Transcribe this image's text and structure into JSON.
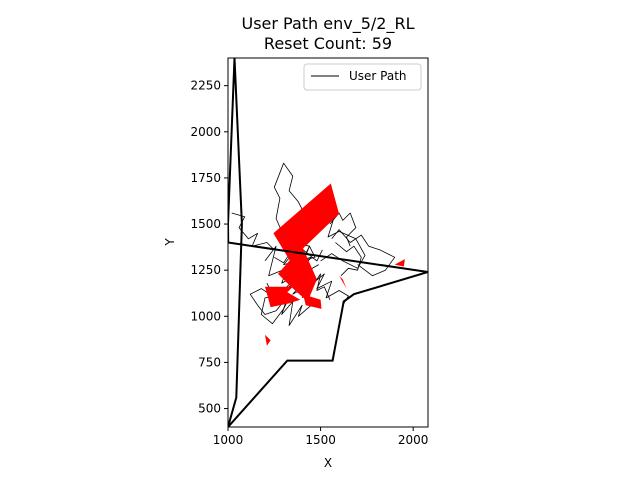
{
  "chart_data": {
    "type": "line",
    "title_line1": "User Path env_5/2_RL",
    "title_line2": "Reset Count: 59",
    "xlabel": "X",
    "ylabel": "Y",
    "xlim": [
      1000,
      2080
    ],
    "ylim": [
      400,
      2400
    ],
    "xticks": [
      1000,
      1500,
      2000
    ],
    "yticks": [
      500,
      750,
      1000,
      1250,
      1500,
      1750,
      2000,
      2250
    ],
    "grid": false,
    "legend": {
      "position": "top-right",
      "entries": [
        "User Path"
      ]
    },
    "colors": {
      "path": "#000000",
      "boundary": "#000000",
      "reset_marker": "#ff0000"
    },
    "boundary": {
      "x": [
        1000,
        1045,
        1075,
        1035,
        1000,
        1001,
        2080,
        1680,
        1625,
        1565,
        1320,
        1000
      ],
      "y": [
        400,
        560,
        1500,
        2400,
        1500,
        1400,
        1240,
        1120,
        1080,
        760,
        760,
        400
      ]
    },
    "reset_regions": [
      {
        "x": [
          1245,
          1555,
          1600,
          1335
        ],
        "y": [
          1450,
          1720,
          1555,
          1300
        ]
      },
      {
        "x": [
          1270,
          1400,
          1480,
          1430,
          1340
        ],
        "y": [
          1230,
          1380,
          1200,
          1080,
          1160
        ]
      },
      {
        "x": [
          1200,
          1350,
          1320,
          1390,
          1330,
          1230
        ],
        "y": [
          1160,
          1160,
          1130,
          1090,
          1070,
          1050
        ]
      },
      {
        "x": [
          1405,
          1500,
          1505,
          1420
        ],
        "y": [
          1120,
          1090,
          1040,
          1060
        ]
      },
      {
        "x": [
          1600,
          1640,
          1620
        ],
        "y": [
          1220,
          1150,
          1200
        ]
      },
      {
        "x": [
          1900,
          1955,
          1950
        ],
        "y": [
          1280,
          1310,
          1270
        ]
      },
      {
        "x": [
          1200,
          1230,
          1210
        ],
        "y": [
          900,
          870,
          840
        ]
      }
    ],
    "series": [
      {
        "x": [
          1340,
          1290,
          1260,
          1280,
          1250,
          1300,
          1350,
          1330,
          1380,
          1400,
          1420
        ],
        "y": [
          1400,
          1460,
          1530,
          1640,
          1700,
          1830,
          1760,
          1680,
          1620,
          1580,
          1540
        ]
      },
      {
        "x": [
          1360,
          1390,
          1330,
          1420,
          1350,
          1400,
          1300,
          1450,
          1380,
          1440,
          1350,
          1490
        ],
        "y": [
          1440,
          1300,
          1360,
          1250,
          1330,
          1400,
          1280,
          1320,
          1240,
          1380,
          1200,
          1280
        ]
      },
      {
        "x": [
          1200,
          1260,
          1220,
          1320,
          1290,
          1380,
          1310,
          1420,
          1350,
          1460,
          1400
        ],
        "y": [
          1300,
          1380,
          1220,
          1260,
          1180,
          1230,
          1150,
          1200,
          1120,
          1180,
          1100
        ]
      },
      {
        "x": [
          1320,
          1290,
          1350,
          1330,
          1400,
          1380,
          1450
        ],
        "y": [
          1100,
          1010,
          1080,
          950,
          1060,
          1000,
          1060
        ]
      },
      {
        "x": [
          1330,
          1300,
          1240,
          1180,
          1200,
          1290,
          1340,
          1390
        ],
        "y": [
          1100,
          1040,
          960,
          1010,
          1100,
          1120,
          1170,
          1210
        ]
      },
      {
        "x": [
          1500,
          1560,
          1620,
          1700,
          1740,
          1690,
          1600,
          1540,
          1580
        ],
        "y": [
          1300,
          1340,
          1300,
          1260,
          1330,
          1420,
          1460,
          1430,
          1560
        ]
      },
      {
        "x": [
          1560,
          1600,
          1660,
          1720,
          1760,
          1820,
          1900,
          1850,
          1780,
          1700
        ],
        "y": [
          1420,
          1470,
          1400,
          1440,
          1380,
          1360,
          1320,
          1250,
          1220,
          1280
        ]
      },
      {
        "x": [
          1420,
          1460,
          1520,
          1480,
          1560,
          1530,
          1600,
          1650,
          1620
        ],
        "y": [
          1220,
          1180,
          1230,
          1150,
          1190,
          1100,
          1140,
          1110,
          1060
        ]
      },
      {
        "x": [
          1550,
          1600,
          1620,
          1660,
          1690,
          1640,
          1660
        ],
        "y": [
          1500,
          1560,
          1520,
          1560,
          1480,
          1430,
          1380
        ]
      },
      {
        "x": [
          1020,
          1090,
          1060,
          1110,
          1160,
          1130,
          1210,
          1250
        ],
        "y": [
          1560,
          1540,
          1480,
          1420,
          1450,
          1380,
          1400,
          1360
        ]
      },
      {
        "x": [
          1250,
          1300,
          1340,
          1380,
          1360,
          1420,
          1460,
          1500,
          1480,
          1520,
          1550
        ],
        "y": [
          1320,
          1290,
          1350,
          1270,
          1200,
          1250,
          1170,
          1230,
          1140,
          1160,
          1090
        ]
      },
      {
        "x": [
          1440,
          1400,
          1370,
          1430,
          1480,
          1510
        ],
        "y": [
          1500,
          1450,
          1390,
          1340,
          1300,
          1360
        ]
      },
      {
        "x": [
          1580,
          1640,
          1680,
          1720,
          1700,
          1650,
          1610
        ],
        "y": [
          1400,
          1350,
          1380,
          1320,
          1250,
          1260,
          1220
        ]
      },
      {
        "x": [
          1210,
          1240,
          1300,
          1260,
          1200,
          1160,
          1120,
          1180,
          1240
        ],
        "y": [
          1180,
          1120,
          1080,
          1030,
          1010,
          1060,
          1120,
          1150,
          1110
        ]
      },
      {
        "x": [
          1340,
          1380,
          1420,
          1360,
          1440,
          1470,
          1400
        ],
        "y": [
          1480,
          1420,
          1460,
          1400,
          1380,
          1320,
          1300
        ]
      }
    ]
  }
}
